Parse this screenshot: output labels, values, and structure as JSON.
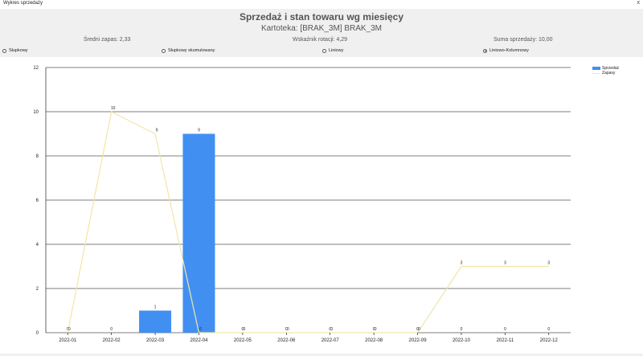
{
  "window": {
    "title": "Wykres sprzedaży",
    "close_label": "x"
  },
  "header": {
    "title": "Sprzedaż i stan towaru wg miesięcy",
    "subtitle": "Kartoteka: [BRAK_3M] BRAK_3M",
    "avg_stock": "Średni zapas: 2,33",
    "rotation": "Wskaźnik rotacji: 4,29",
    "sales_sum": "Suma sprzedaży: 10,00"
  },
  "chart_modes": [
    {
      "label": "Słupkowy",
      "selected": false
    },
    {
      "label": "Słupkowy skumulowany",
      "selected": false
    },
    {
      "label": "Liniowy",
      "selected": false
    },
    {
      "label": "Liniowo-Kolumnowy",
      "selected": true
    }
  ],
  "colors": {
    "bar": "#428ff2",
    "line": "#f0e6a8",
    "grid": "#000000"
  },
  "chart_data": {
    "type": "bar",
    "categories": [
      "2022-01",
      "2022-02",
      "2022-03",
      "2022-04",
      "2022-05",
      "2022-06",
      "2022-07",
      "2022-08",
      "2022-09",
      "2022-10",
      "2022-11",
      "2022-12"
    ],
    "series": [
      {
        "name": "Sprzedaż",
        "type": "bar",
        "values": [
          0,
          0,
          1,
          9,
          0,
          0,
          0,
          0,
          0,
          0,
          0,
          0
        ]
      },
      {
        "name": "Zapasy",
        "type": "line",
        "values": [
          0,
          10,
          9,
          0,
          0,
          0,
          0,
          0,
          0,
          3,
          3,
          3
        ]
      }
    ],
    "ylim": [
      0,
      12
    ],
    "yticks": [
      "0",
      "2",
      "4",
      "6",
      "8",
      "10",
      "12"
    ],
    "legend_position": "top-right",
    "grid": true
  }
}
